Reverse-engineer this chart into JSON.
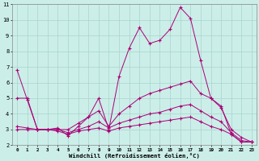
{
  "xlabel": "Windchill (Refroidissement éolien,°C)",
  "bg_color": "#cceee8",
  "grid_color": "#a8d4ce",
  "line_color": "#aa0077",
  "xmin": 0,
  "xmax": 23,
  "ymin": 2,
  "ymax": 11,
  "series1_y": [
    6.8,
    4.9,
    3.0,
    3.0,
    3.1,
    2.6,
    3.2,
    3.8,
    5.0,
    3.0,
    6.4,
    8.2,
    9.5,
    8.5,
    8.7,
    9.4,
    10.8,
    10.1,
    7.4,
    5.0,
    4.5,
    2.7,
    2.2,
    2.2
  ],
  "series2_y": [
    5.0,
    5.0,
    3.0,
    3.0,
    3.0,
    3.0,
    3.4,
    3.8,
    4.2,
    3.2,
    4.0,
    4.5,
    5.0,
    5.3,
    5.5,
    5.7,
    5.9,
    6.1,
    5.3,
    5.0,
    4.4,
    3.0,
    2.5,
    2.2
  ],
  "series3_y": [
    3.2,
    3.1,
    3.0,
    3.0,
    3.0,
    2.8,
    3.0,
    3.2,
    3.5,
    3.1,
    3.4,
    3.6,
    3.8,
    4.0,
    4.1,
    4.3,
    4.5,
    4.6,
    4.2,
    3.8,
    3.5,
    2.8,
    2.3,
    2.2
  ],
  "series4_y": [
    3.0,
    3.0,
    3.0,
    3.0,
    2.9,
    2.7,
    2.9,
    3.0,
    3.1,
    2.9,
    3.1,
    3.2,
    3.3,
    3.4,
    3.5,
    3.6,
    3.7,
    3.8,
    3.5,
    3.2,
    3.0,
    2.7,
    2.2,
    2.2
  ],
  "ytick_values": [
    2,
    3,
    4,
    5,
    6,
    7,
    8,
    9,
    10,
    11
  ],
  "xtick_labels": [
    "0",
    "1",
    "2",
    "3",
    "4",
    "5",
    "6",
    "7",
    "8",
    "9",
    "10",
    "11",
    "12",
    "13",
    "14",
    "15",
    "16",
    "17",
    "18",
    "19",
    "20",
    "21",
    "22",
    "23"
  ]
}
